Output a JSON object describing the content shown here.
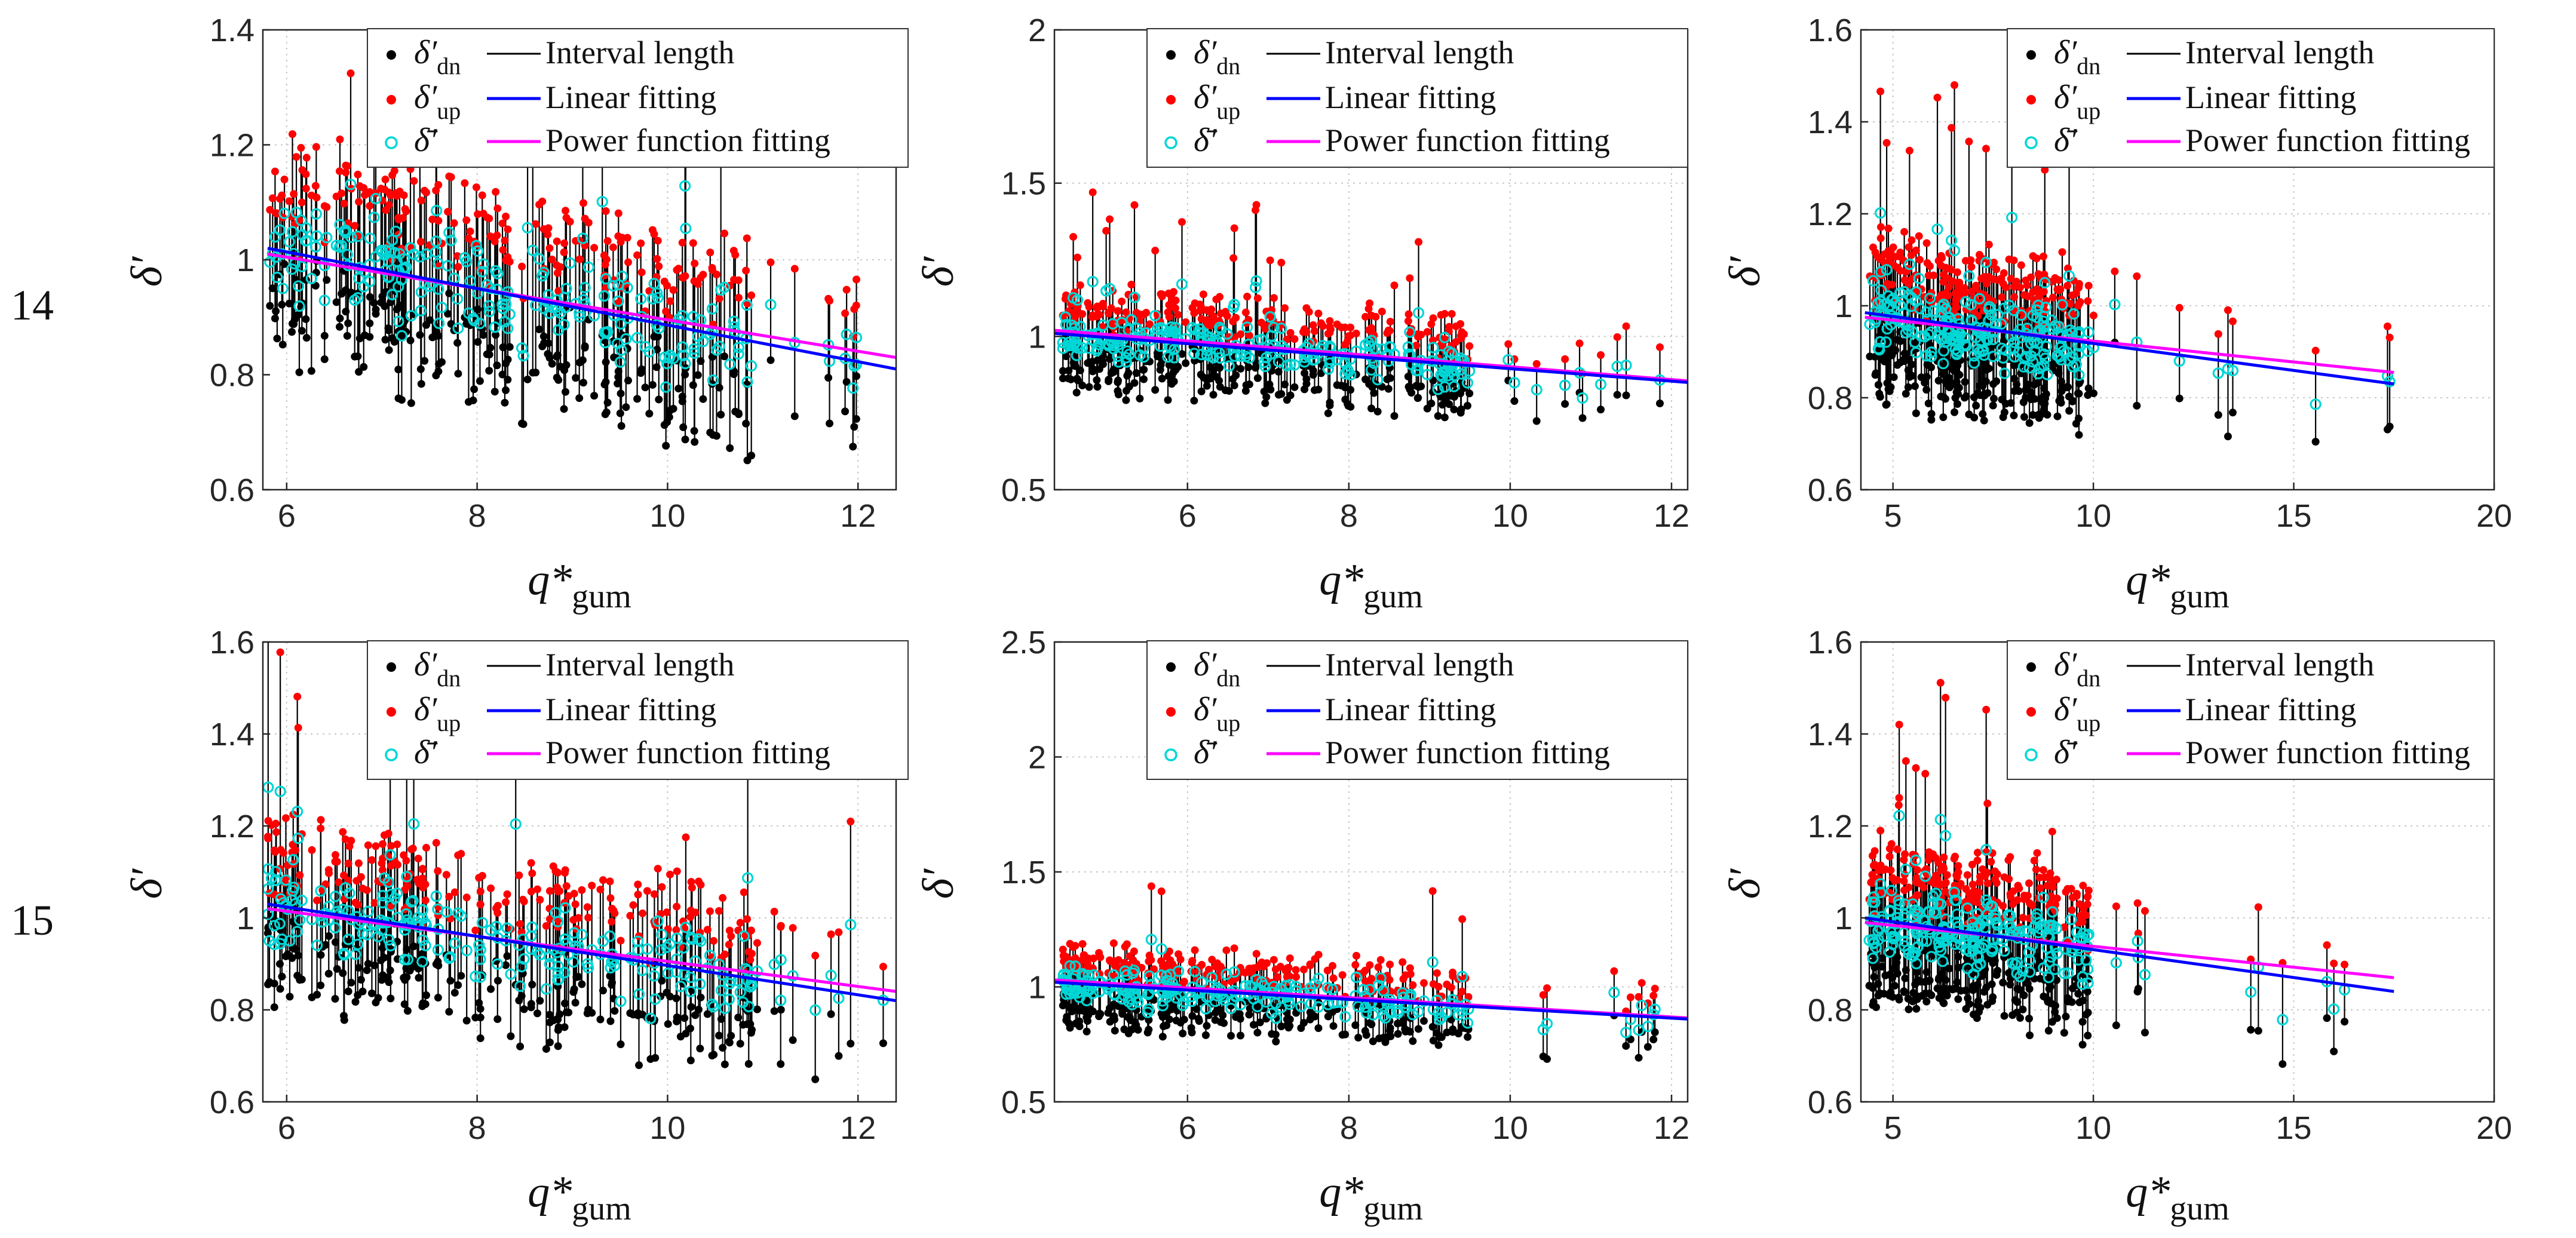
{
  "figure": {
    "row_labels": [
      "14",
      "15"
    ],
    "colors": {
      "dn": "#000000",
      "up": "#ff0000",
      "mean": "#00d6d6",
      "interval": "#000000",
      "linear": "#0000ff",
      "power": "#ff00ff",
      "grid": "#c8c8c8",
      "axis": "#262626"
    }
  },
  "legend": {
    "dn_sym": "δ′",
    "dn_sub": "dn",
    "up_sym": "δ′",
    "up_sub": "up",
    "mean_sym": "δ̄′",
    "interval": "Interval length",
    "linear": "Linear fitting",
    "power": "Power function fitting"
  },
  "axis_text": {
    "ylabel": "δ′",
    "xlabel_main": "q*",
    "xlabel_sub": "gum"
  },
  "chart_data": [
    {
      "type": "scatter",
      "row": "14",
      "col": 1,
      "xlim": [
        5.75,
        12.4
      ],
      "ylim": [
        0.6,
        1.4
      ],
      "xticks": [
        6,
        8,
        10,
        12
      ],
      "yticks": [
        0.6,
        0.8,
        1,
        1.2,
        1.4
      ],
      "xtick_labels": [
        "6",
        "8",
        "10",
        "12"
      ],
      "ytick_labels": [
        "0.6",
        "0.8",
        "1",
        "1.2",
        "1.4"
      ],
      "xgrid": [
        6,
        8,
        10,
        12
      ],
      "ygrid": [
        1,
        1.2,
        1.4
      ],
      "xmin": 5.8,
      "xmax": 12.35,
      "dense_end": 10.9,
      "spread": 0.13,
      "center": [
        1.02,
        0.81
      ],
      "linear": {
        "x": [
          5.8,
          12.4
        ],
        "y": [
          1.02,
          0.81
        ]
      },
      "power": {
        "x": [
          5.8,
          12.4
        ],
        "y": [
          1.01,
          0.83
        ]
      },
      "n_points": 240,
      "seed": 14101
    },
    {
      "type": "scatter",
      "row": "14",
      "col": 2,
      "xlim": [
        4.35,
        12.2
      ],
      "ylim": [
        0.5,
        2.0
      ],
      "xticks": [
        6,
        8,
        10,
        12
      ],
      "yticks": [
        0.5,
        1,
        1.5,
        2
      ],
      "xtick_labels": [
        "6",
        "8",
        "10",
        "12"
      ],
      "ytick_labels": [
        "0.5",
        "1",
        "1.5",
        "2"
      ],
      "xgrid": [
        6,
        8,
        10,
        12
      ],
      "ygrid": [
        1,
        1.5,
        2
      ],
      "xmin": 4.45,
      "xmax": 12.15,
      "dense_end": 9.5,
      "spread": 0.11,
      "center": [
        1.01,
        0.85
      ],
      "linear": {
        "x": [
          4.35,
          12.2
        ],
        "y": [
          1.01,
          0.85
        ]
      },
      "power": {
        "x": [
          4.35,
          12.2
        ],
        "y": [
          1.02,
          0.855
        ]
      },
      "n_points": 240,
      "seed": 14202
    },
    {
      "type": "scatter",
      "row": "14",
      "col": 3,
      "xlim": [
        4.2,
        20
      ],
      "ylim": [
        0.6,
        1.6
      ],
      "xticks": [
        5,
        10,
        15,
        20
      ],
      "yticks": [
        0.6,
        0.8,
        1,
        1.2,
        1.4,
        1.6
      ],
      "xtick_labels": [
        "5",
        "10",
        "15",
        "20"
      ],
      "ytick_labels": [
        "0.6",
        "0.8",
        "1",
        "1.2",
        "1.4",
        "1.6"
      ],
      "xgrid": [
        5,
        10,
        15,
        20
      ],
      "ygrid": [
        0.8,
        1,
        1.2,
        1.4,
        1.6
      ],
      "xmin": 4.4,
      "xmax": 17.5,
      "dense_end": 9.9,
      "spread": 0.12,
      "center": [
        0.985,
        0.83
      ],
      "linear": {
        "x": [
          4.3,
          17.5
        ],
        "y": [
          0.985,
          0.83
        ]
      },
      "power": {
        "x": [
          4.3,
          17.5
        ],
        "y": [
          0.975,
          0.855
        ]
      },
      "n_points": 240,
      "seed": 14303
    },
    {
      "type": "scatter",
      "row": "15",
      "col": 1,
      "xlim": [
        5.75,
        12.4
      ],
      "ylim": [
        0.6,
        1.6
      ],
      "xticks": [
        6,
        8,
        10,
        12
      ],
      "yticks": [
        0.6,
        0.8,
        1,
        1.2,
        1.4,
        1.6
      ],
      "xtick_labels": [
        "6",
        "8",
        "10",
        "12"
      ],
      "ytick_labels": [
        "0.6",
        "0.8",
        "1",
        "1.2",
        "1.4",
        "1.6"
      ],
      "xgrid": [
        6,
        8,
        10,
        12
      ],
      "ygrid": [
        1,
        1.2,
        1.4,
        1.6
      ],
      "xmin": 5.8,
      "xmax": 12.35,
      "dense_end": 10.9,
      "spread": 0.13,
      "center": [
        1.03,
        0.82
      ],
      "linear": {
        "x": [
          5.8,
          12.4
        ],
        "y": [
          1.03,
          0.82
        ]
      },
      "power": {
        "x": [
          5.8,
          12.4
        ],
        "y": [
          1.02,
          0.84
        ]
      },
      "n_points": 240,
      "seed": 15101
    },
    {
      "type": "scatter",
      "row": "15",
      "col": 2,
      "xlim": [
        4.35,
        12.2
      ],
      "ylim": [
        0.5,
        2.5
      ],
      "xticks": [
        6,
        8,
        10,
        12
      ],
      "yticks": [
        0.5,
        1,
        1.5,
        2,
        2.5
      ],
      "xtick_labels": [
        "6",
        "8",
        "10",
        "12"
      ],
      "ytick_labels": [
        "0.5",
        "1",
        "1.5",
        "2",
        "2.5"
      ],
      "xgrid": [
        6,
        8,
        10,
        12
      ],
      "ygrid": [
        1,
        1.5,
        2,
        2.5
      ],
      "xmin": 4.45,
      "xmax": 12.15,
      "dense_end": 9.5,
      "spread": 0.12,
      "center": [
        1.02,
        0.86
      ],
      "linear": {
        "x": [
          4.35,
          12.2
        ],
        "y": [
          1.02,
          0.86
        ]
      },
      "power": {
        "x": [
          4.35,
          12.2
        ],
        "y": [
          1.03,
          0.865
        ]
      },
      "n_points": 240,
      "seed": 15202
    },
    {
      "type": "scatter",
      "row": "15",
      "col": 3,
      "xlim": [
        4.2,
        20
      ],
      "ylim": [
        0.6,
        1.6
      ],
      "xticks": [
        5,
        10,
        15,
        20
      ],
      "yticks": [
        0.6,
        0.8,
        1,
        1.2,
        1.4,
        1.6
      ],
      "xtick_labels": [
        "5",
        "10",
        "15",
        "20"
      ],
      "ytick_labels": [
        "0.6",
        "0.8",
        "1",
        "1.2",
        "1.4",
        "1.6"
      ],
      "xgrid": [
        5,
        10,
        15,
        20
      ],
      "ygrid": [
        0.8,
        1,
        1.2,
        1.4,
        1.6
      ],
      "xmin": 4.4,
      "xmax": 17.5,
      "dense_end": 9.9,
      "spread": 0.12,
      "center": [
        1.0,
        0.84
      ],
      "linear": {
        "x": [
          4.3,
          17.5
        ],
        "y": [
          1.0,
          0.84
        ]
      },
      "power": {
        "x": [
          4.3,
          17.5
        ],
        "y": [
          0.99,
          0.87
        ]
      },
      "n_points": 240,
      "seed": 15303
    }
  ]
}
